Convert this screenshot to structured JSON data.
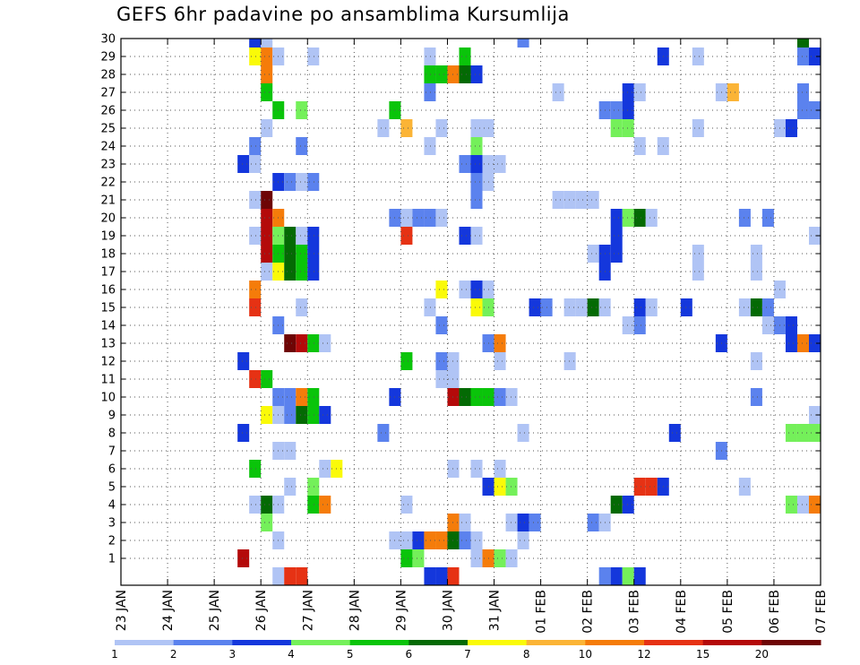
{
  "chart_data": {
    "type": "heatmap",
    "title": "GEFS 6hr padavine po ansamblima Kursumlija",
    "y_categories": [
      "1",
      "2",
      "3",
      "4",
      "5",
      "6",
      "7",
      "8",
      "9",
      "10",
      "11",
      "12",
      "13",
      "14",
      "15",
      "16",
      "17",
      "18",
      "19",
      "20",
      "21",
      "22",
      "23",
      "24",
      "25",
      "26",
      "27",
      "28",
      "29",
      "30"
    ],
    "x_ticks": [
      "23 JAN",
      "24 JAN",
      "25 JAN",
      "26 JAN",
      "27 JAN",
      "28 JAN",
      "29 JAN",
      "30 JAN",
      "31 JAN",
      "01 FEB",
      "02 FEB",
      "03 FEB",
      "04 FEB",
      "05 FEB",
      "06 FEB",
      "07 FEB"
    ],
    "x_unit": "days",
    "x_step": 0.25,
    "colorbar": {
      "labels": [
        "1",
        "2",
        "3",
        "4",
        "5",
        "6",
        "7",
        "8",
        "10",
        "12",
        "15",
        "20"
      ],
      "colors": [
        "#b0c4f5",
        "#5b82ee",
        "#1437dc",
        "#74f05a",
        "#0ac40a",
        "#046a04",
        "#fafa08",
        "#fbb436",
        "#f57c0a",
        "#e63214",
        "#b40a0a",
        "#6e0505"
      ]
    },
    "cells": [
      [
        2.75,
        30,
        3
      ],
      [
        3.0,
        30,
        1
      ],
      [
        8.5,
        30,
        2
      ],
      [
        14.5,
        30,
        6
      ],
      [
        2.75,
        29,
        7
      ],
      [
        3.0,
        29,
        9
      ],
      [
        3.25,
        29,
        1
      ],
      [
        4.0,
        29,
        1
      ],
      [
        6.5,
        29,
        1
      ],
      [
        7.25,
        29,
        5
      ],
      [
        11.5,
        29,
        3
      ],
      [
        12.25,
        29,
        1
      ],
      [
        14.5,
        29,
        2
      ],
      [
        14.75,
        29,
        3
      ],
      [
        3.0,
        28,
        9
      ],
      [
        6.5,
        28,
        5
      ],
      [
        6.75,
        28,
        5
      ],
      [
        7.0,
        28,
        9
      ],
      [
        7.25,
        28,
        6
      ],
      [
        7.5,
        28,
        3
      ],
      [
        3.0,
        27,
        5
      ],
      [
        6.5,
        27,
        2
      ],
      [
        9.25,
        27,
        1
      ],
      [
        10.75,
        27,
        3
      ],
      [
        11.0,
        27,
        1
      ],
      [
        12.75,
        27,
        1
      ],
      [
        13.0,
        27,
        8
      ],
      [
        14.5,
        27,
        2
      ],
      [
        3.25,
        26,
        5
      ],
      [
        3.75,
        26,
        4
      ],
      [
        5.75,
        26,
        5
      ],
      [
        10.25,
        26,
        2
      ],
      [
        10.5,
        26,
        2
      ],
      [
        10.75,
        26,
        3
      ],
      [
        14.5,
        26,
        2
      ],
      [
        14.75,
        26,
        2
      ],
      [
        3.0,
        25,
        1
      ],
      [
        5.5,
        25,
        1
      ],
      [
        6.0,
        25,
        8
      ],
      [
        6.75,
        25,
        1
      ],
      [
        7.5,
        25,
        1
      ],
      [
        7.75,
        25,
        1
      ],
      [
        10.5,
        25,
        4
      ],
      [
        10.75,
        25,
        4
      ],
      [
        12.25,
        25,
        1
      ],
      [
        14.0,
        25,
        1
      ],
      [
        14.25,
        25,
        3
      ],
      [
        2.75,
        24,
        2
      ],
      [
        3.75,
        24,
        2
      ],
      [
        6.5,
        24,
        1
      ],
      [
        7.5,
        24,
        4
      ],
      [
        11.0,
        24,
        1
      ],
      [
        11.5,
        24,
        1
      ],
      [
        2.5,
        23,
        3
      ],
      [
        2.75,
        23,
        1
      ],
      [
        7.25,
        23,
        2
      ],
      [
        7.5,
        23,
        3
      ],
      [
        7.75,
        23,
        1
      ],
      [
        8.0,
        23,
        1
      ],
      [
        3.25,
        22,
        3
      ],
      [
        3.5,
        22,
        2
      ],
      [
        3.75,
        22,
        1
      ],
      [
        4.0,
        22,
        2
      ],
      [
        7.5,
        22,
        2
      ],
      [
        7.75,
        22,
        1
      ],
      [
        2.75,
        21,
        1
      ],
      [
        3.0,
        21,
        12
      ],
      [
        7.5,
        21,
        2
      ],
      [
        9.25,
        21,
        1
      ],
      [
        9.5,
        21,
        1
      ],
      [
        9.75,
        21,
        1
      ],
      [
        10.0,
        21,
        1
      ],
      [
        3.0,
        20,
        11
      ],
      [
        3.25,
        20,
        9
      ],
      [
        5.75,
        20,
        2
      ],
      [
        6.0,
        20,
        1
      ],
      [
        6.25,
        20,
        2
      ],
      [
        6.5,
        20,
        2
      ],
      [
        6.75,
        20,
        1
      ],
      [
        10.5,
        20,
        3
      ],
      [
        10.75,
        20,
        4
      ],
      [
        11.0,
        20,
        6
      ],
      [
        11.25,
        20,
        1
      ],
      [
        13.25,
        20,
        2
      ],
      [
        13.75,
        20,
        2
      ],
      [
        2.75,
        19,
        1
      ],
      [
        3.0,
        19,
        11
      ],
      [
        3.25,
        19,
        4
      ],
      [
        3.5,
        19,
        6
      ],
      [
        3.75,
        19,
        1
      ],
      [
        4.0,
        19,
        3
      ],
      [
        6.0,
        19,
        10
      ],
      [
        7.25,
        19,
        3
      ],
      [
        7.5,
        19,
        1
      ],
      [
        10.5,
        19,
        3
      ],
      [
        14.75,
        19,
        1
      ],
      [
        3.0,
        18,
        11
      ],
      [
        3.25,
        18,
        5
      ],
      [
        3.5,
        18,
        6
      ],
      [
        3.75,
        18,
        5
      ],
      [
        4.0,
        18,
        3
      ],
      [
        10.0,
        18,
        1
      ],
      [
        10.25,
        18,
        3
      ],
      [
        10.5,
        18,
        3
      ],
      [
        12.25,
        18,
        1
      ],
      [
        13.5,
        18,
        1
      ],
      [
        3.0,
        17,
        1
      ],
      [
        3.25,
        17,
        7
      ],
      [
        3.5,
        17,
        6
      ],
      [
        3.75,
        17,
        5
      ],
      [
        4.0,
        17,
        3
      ],
      [
        10.25,
        17,
        3
      ],
      [
        12.25,
        17,
        1
      ],
      [
        13.5,
        17,
        1
      ],
      [
        2.75,
        16,
        9
      ],
      [
        6.75,
        16,
        7
      ],
      [
        7.25,
        16,
        1
      ],
      [
        7.5,
        16,
        3
      ],
      [
        7.75,
        16,
        1
      ],
      [
        14.0,
        16,
        1
      ],
      [
        2.75,
        15,
        10
      ],
      [
        3.75,
        15,
        1
      ],
      [
        6.5,
        15,
        1
      ],
      [
        7.5,
        15,
        7
      ],
      [
        7.75,
        15,
        4
      ],
      [
        8.75,
        15,
        3
      ],
      [
        9.0,
        15,
        2
      ],
      [
        9.5,
        15,
        1
      ],
      [
        9.75,
        15,
        1
      ],
      [
        10.0,
        15,
        6
      ],
      [
        10.25,
        15,
        1
      ],
      [
        11.0,
        15,
        3
      ],
      [
        11.25,
        15,
        1
      ],
      [
        12.0,
        15,
        3
      ],
      [
        13.25,
        15,
        1
      ],
      [
        13.5,
        15,
        6
      ],
      [
        13.75,
        15,
        2
      ],
      [
        3.25,
        14,
        2
      ],
      [
        6.75,
        14,
        2
      ],
      [
        10.75,
        14,
        1
      ],
      [
        11.0,
        14,
        2
      ],
      [
        13.75,
        14,
        1
      ],
      [
        14.0,
        14,
        2
      ],
      [
        14.25,
        14,
        3
      ],
      [
        3.5,
        13,
        12
      ],
      [
        3.75,
        13,
        11
      ],
      [
        4.0,
        13,
        5
      ],
      [
        4.25,
        13,
        1
      ],
      [
        7.75,
        13,
        2
      ],
      [
        8.0,
        13,
        9
      ],
      [
        12.75,
        13,
        3
      ],
      [
        14.25,
        13,
        3
      ],
      [
        14.5,
        13,
        9
      ],
      [
        14.75,
        13,
        3
      ],
      [
        2.5,
        12,
        3
      ],
      [
        6.0,
        12,
        5
      ],
      [
        6.75,
        12,
        2
      ],
      [
        7.0,
        12,
        1
      ],
      [
        8.0,
        12,
        1
      ],
      [
        9.5,
        12,
        1
      ],
      [
        13.5,
        12,
        1
      ],
      [
        2.75,
        11,
        10
      ],
      [
        3.0,
        11,
        5
      ],
      [
        6.75,
        11,
        1
      ],
      [
        7.0,
        11,
        1
      ],
      [
        3.25,
        10,
        2
      ],
      [
        3.5,
        10,
        2
      ],
      [
        3.75,
        10,
        9
      ],
      [
        4.0,
        10,
        5
      ],
      [
        5.75,
        10,
        3
      ],
      [
        7.0,
        10,
        11
      ],
      [
        7.25,
        10,
        6
      ],
      [
        7.5,
        10,
        5
      ],
      [
        7.75,
        10,
        5
      ],
      [
        8.0,
        10,
        2
      ],
      [
        8.25,
        10,
        1
      ],
      [
        13.5,
        10,
        2
      ],
      [
        3.0,
        9,
        7
      ],
      [
        3.25,
        9,
        1
      ],
      [
        3.5,
        9,
        2
      ],
      [
        3.75,
        9,
        6
      ],
      [
        4.0,
        9,
        5
      ],
      [
        4.25,
        9,
        3
      ],
      [
        14.75,
        9,
        1
      ],
      [
        15.0,
        9,
        2
      ],
      [
        2.5,
        8,
        3
      ],
      [
        5.5,
        8,
        2
      ],
      [
        8.5,
        8,
        1
      ],
      [
        11.75,
        8,
        3
      ],
      [
        14.25,
        8,
        4
      ],
      [
        14.5,
        8,
        4
      ],
      [
        14.75,
        8,
        4
      ],
      [
        15.0,
        8,
        3
      ],
      [
        3.25,
        7,
        1
      ],
      [
        3.5,
        7,
        1
      ],
      [
        12.75,
        7,
        2
      ],
      [
        2.75,
        6,
        5
      ],
      [
        4.25,
        6,
        1
      ],
      [
        4.5,
        6,
        7
      ],
      [
        7.0,
        6,
        1
      ],
      [
        7.5,
        6,
        1
      ],
      [
        8.0,
        6,
        1
      ],
      [
        15.0,
        6,
        1
      ],
      [
        3.5,
        5,
        1
      ],
      [
        4.0,
        5,
        4
      ],
      [
        7.75,
        5,
        3
      ],
      [
        8.0,
        5,
        7
      ],
      [
        8.25,
        5,
        4
      ],
      [
        11.0,
        5,
        10
      ],
      [
        11.25,
        5,
        10
      ],
      [
        11.5,
        5,
        3
      ],
      [
        13.25,
        5,
        1
      ],
      [
        2.75,
        4,
        1
      ],
      [
        3.0,
        4,
        6
      ],
      [
        3.25,
        4,
        1
      ],
      [
        4.0,
        4,
        5
      ],
      [
        4.25,
        4,
        9
      ],
      [
        6.0,
        4,
        1
      ],
      [
        10.5,
        4,
        6
      ],
      [
        10.75,
        4,
        3
      ],
      [
        14.25,
        4,
        4
      ],
      [
        14.5,
        4,
        1
      ],
      [
        14.75,
        4,
        9
      ],
      [
        3.0,
        3,
        4
      ],
      [
        7.0,
        3,
        9
      ],
      [
        7.25,
        3,
        1
      ],
      [
        8.25,
        3,
        1
      ],
      [
        8.5,
        3,
        3
      ],
      [
        8.75,
        3,
        2
      ],
      [
        10.0,
        3,
        2
      ],
      [
        10.25,
        3,
        1
      ],
      [
        3.25,
        2,
        1
      ],
      [
        5.75,
        2,
        1
      ],
      [
        6.0,
        2,
        1
      ],
      [
        6.25,
        2,
        3
      ],
      [
        6.5,
        2,
        9
      ],
      [
        6.75,
        2,
        9
      ],
      [
        7.0,
        2,
        6
      ],
      [
        7.25,
        2,
        2
      ],
      [
        7.5,
        2,
        1
      ],
      [
        8.5,
        2,
        1
      ],
      [
        2.5,
        1,
        11
      ],
      [
        6.0,
        1,
        5
      ],
      [
        6.25,
        1,
        4
      ],
      [
        7.5,
        1,
        1
      ],
      [
        7.75,
        1,
        9
      ],
      [
        8.0,
        1,
        4
      ],
      [
        8.25,
        1,
        1
      ],
      [
        15.0,
        1,
        4
      ],
      [
        3.25,
        0,
        1
      ],
      [
        3.5,
        0,
        10
      ],
      [
        3.75,
        0,
        10
      ],
      [
        6.5,
        0,
        3
      ],
      [
        6.75,
        0,
        3
      ],
      [
        7.0,
        0,
        10
      ],
      [
        10.25,
        0,
        2
      ],
      [
        10.5,
        0,
        3
      ],
      [
        10.75,
        0,
        4
      ],
      [
        11.0,
        0,
        3
      ]
    ],
    "grid": true,
    "legend_placement": "bottom"
  }
}
